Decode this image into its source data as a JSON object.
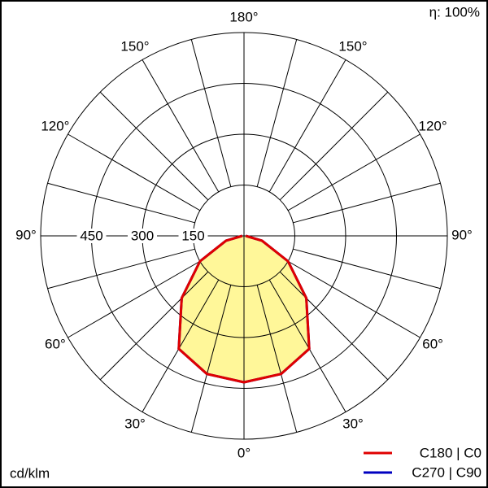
{
  "chart_data": {
    "type": "polar",
    "efficiency": "η: 100%",
    "unit": "cd/klm",
    "x": [
      -90,
      -75,
      -60,
      -45,
      -30,
      -15,
      0,
      15,
      30,
      45,
      60,
      75,
      90
    ],
    "series": [
      {
        "name": "C270 | C90",
        "color": "#0000c0",
        "values": [
          5,
          55,
          150,
          260,
          385,
          422,
          432,
          422,
          385,
          260,
          150,
          55,
          5
        ]
      },
      {
        "name": "C180 | C0",
        "color": "#e00000",
        "values": [
          5,
          55,
          150,
          260,
          385,
          422,
          432,
          422,
          385,
          260,
          150,
          55,
          5
        ]
      }
    ],
    "fill": "#fff799",
    "rlim": [
      0,
      600
    ],
    "rticks": [
      150,
      300,
      450
    ],
    "xticks": [
      {
        "value": 0,
        "label": "0°"
      },
      {
        "value": 30,
        "label": "30°"
      },
      {
        "value": 60,
        "label": "60°"
      },
      {
        "value": 90,
        "label": "90°"
      },
      {
        "value": 120,
        "label": "120°"
      },
      {
        "value": 150,
        "label": "150°"
      },
      {
        "value": 180,
        "label": "180°"
      }
    ]
  }
}
